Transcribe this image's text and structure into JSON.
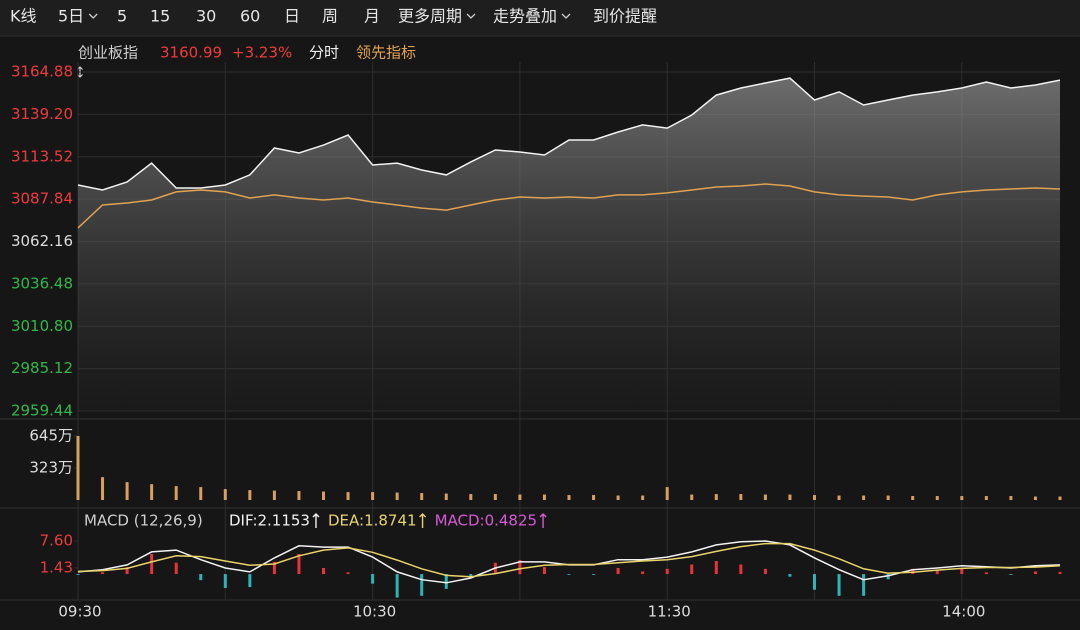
{
  "toolbar": {
    "items": [
      "K线",
      "5日",
      "5",
      "15",
      "30",
      "60",
      "日",
      "周",
      "月",
      "更多周期",
      "走势叠加",
      "到价提醒"
    ],
    "dropdowns": [
      1,
      9,
      10
    ]
  },
  "chart_data": [
    {
      "type": "line",
      "title": "创业板指",
      "last_price": 3160.99,
      "change": {
        "value": 3.23,
        "label": "+3.23%"
      },
      "mode": "分时",
      "indicator": "领先指标",
      "x": [
        0,
        5,
        10,
        15,
        20,
        25,
        30,
        35,
        40,
        45,
        50,
        55,
        60,
        65,
        70,
        75,
        80,
        85,
        90,
        95,
        100,
        105,
        110,
        115,
        120,
        125,
        130,
        135,
        140,
        145,
        150,
        155,
        160,
        165,
        170,
        175,
        180,
        185,
        190,
        195,
        200
      ],
      "xlim": [
        0,
        200
      ],
      "xticks": [
        {
          "value": 0,
          "label": "09:30"
        },
        {
          "value": 30,
          "label": null
        },
        {
          "value": 60,
          "label": "10:30"
        },
        {
          "value": 90,
          "label": null
        },
        {
          "value": 120,
          "label": "11:30"
        },
        {
          "value": 150,
          "label": null
        },
        {
          "value": 180,
          "label": "14:00"
        }
      ],
      "ylim": [
        2959.44,
        3164.88
      ],
      "yticks": [
        3164.88,
        {
          "value": 3139.2,
          "label": "3139.20"
        },
        3113.52,
        3087.84,
        3062.16,
        3036.48,
        {
          "value": 3010.8,
          "label": "3010.80"
        },
        2985.12,
        2959.44
      ],
      "ytick_colors": [
        "#ee3b3b",
        "#ee3b3b",
        "#ee3b3b",
        "#ee3b3b",
        "#dddddd",
        "#2fb84a",
        "#2fb84a",
        "#2fb84a",
        "#2fb84a"
      ],
      "grid": true,
      "area": true,
      "series": [
        {
          "color": "#f2f2f2",
          "values": [
            3096.4,
            3093.4,
            3098.2,
            3109.7,
            3094.6,
            3094.6,
            3096.4,
            3102.5,
            3118.8,
            3115.8,
            3120.6,
            3126.7,
            3108.5,
            3109.7,
            3105.5,
            3102.5,
            3110.4,
            3117.6,
            3116.4,
            3114.6,
            3123.7,
            3123.7,
            3128.5,
            3132.8,
            3130.9,
            3138.8,
            3150.9,
            3155.2,
            3158.2,
            3161.2,
            3147.9,
            3152.8,
            3144.9,
            3147.9,
            3150.9,
            3152.8,
            3155.2,
            3158.8,
            3155.2,
            3157.0,
            3160.0
          ]
        },
        {
          "color": "#e0a251",
          "values": [
            3070.4,
            3084.3,
            3085.5,
            3087.3,
            3092.2,
            3093.4,
            3092.2,
            3088.5,
            3090.4,
            3088.5,
            3087.3,
            3088.5,
            3086.1,
            3084.3,
            3082.4,
            3081.2,
            3084.3,
            3087.3,
            3089.1,
            3088.5,
            3089.1,
            3088.5,
            3090.4,
            3090.4,
            3091.6,
            3093.4,
            3095.2,
            3095.8,
            3097.0,
            3095.8,
            3092.2,
            3090.4,
            3089.7,
            3089.1,
            3087.3,
            3090.4,
            3092.2,
            3093.4,
            3094.0,
            3094.6,
            3094.0
          ]
        }
      ]
    },
    {
      "type": "bar",
      "color": "#d9a05b",
      "x": [
        0,
        5,
        10,
        15,
        20,
        25,
        30,
        35,
        40,
        45,
        50,
        55,
        60,
        65,
        70,
        75,
        80,
        85,
        90,
        95,
        100,
        105,
        110,
        115,
        120,
        125,
        130,
        135,
        140,
        145,
        150,
        155,
        160,
        165,
        170,
        175,
        180,
        185,
        190,
        195,
        200
      ],
      "xlim": [
        0,
        200
      ],
      "ylim": [
        0,
        645
      ],
      "yticks": [
        {
          "value": 645,
          "label": "645万"
        },
        {
          "value": 323,
          "label": "323万"
        }
      ],
      "values": [
        645,
        230,
        180,
        160,
        140,
        130,
        110,
        100,
        95,
        90,
        85,
        80,
        80,
        75,
        70,
        65,
        60,
        60,
        55,
        55,
        50,
        50,
        45,
        45,
        130,
        55,
        60,
        60,
        55,
        55,
        50,
        45,
        45,
        45,
        40,
        40,
        40,
        40,
        40,
        35,
        35
      ]
    },
    {
      "type": "line",
      "title": "MACD (12,26,9)",
      "x": [
        0,
        5,
        10,
        15,
        20,
        25,
        30,
        35,
        40,
        45,
        50,
        55,
        60,
        65,
        70,
        75,
        80,
        85,
        90,
        95,
        100,
        105,
        110,
        115,
        120,
        125,
        130,
        135,
        140,
        145,
        150,
        155,
        160,
        165,
        170,
        175,
        180,
        185,
        190,
        195,
        200
      ],
      "xlim": [
        0,
        200
      ],
      "ylim": [
        -5.5,
        9.66
      ],
      "yticks": [
        {
          "value": 7.6,
          "label": "7.60"
        },
        1.43
      ],
      "ytick_colors": [
        "#ee3b3b",
        "#ee3b3b"
      ],
      "series": [
        {
          "type": "bar",
          "label": "MACD:0.4825",
          "color": "#d65ad6",
          "colors": [
            "#e8333b",
            "#2bb5b8"
          ],
          "values": [
            -0.2,
            0.4,
            1.6,
            4.6,
            2.6,
            -1.4,
            -3.2,
            -3.0,
            2.8,
            4.6,
            1.4,
            0.4,
            -2.2,
            -5.4,
            -5.0,
            -3.4,
            -0.6,
            2.6,
            3.2,
            1.6,
            -0.2,
            -0.2,
            1.4,
            0.6,
            1.2,
            2.2,
            3.0,
            2.2,
            1.2,
            -0.6,
            -3.6,
            -5.0,
            -5.0,
            -1.2,
            1.2,
            1.0,
            1.2,
            0.4,
            -0.2,
            0.6,
            0.5
          ]
        },
        {
          "label": "DIF:2.1153",
          "color": "#f2f2f2",
          "values": [
            0.5,
            1.0,
            2.1,
            5.1,
            5.5,
            3.3,
            1.4,
            0.5,
            3.7,
            6.5,
            6.2,
            6.2,
            3.9,
            0.5,
            -1.3,
            -2.0,
            -0.9,
            1.4,
            2.8,
            2.8,
            2.1,
            2.1,
            3.3,
            3.3,
            3.9,
            5.1,
            6.7,
            7.4,
            7.6,
            6.7,
            3.7,
            1.0,
            -1.3,
            -0.4,
            1.0,
            1.4,
            1.9,
            1.7,
            1.4,
            1.9,
            2.1
          ]
        },
        {
          "label": "DEA:1.8741",
          "color": "#e8d36a",
          "values": [
            0.6,
            0.8,
            1.3,
            2.8,
            4.2,
            4.0,
            3.0,
            2.0,
            2.3,
            4.2,
            5.5,
            6.0,
            5.0,
            3.2,
            1.2,
            -0.3,
            -0.6,
            0.1,
            1.2,
            2.0,
            2.2,
            2.2,
            2.6,
            3.0,
            3.3,
            4.0,
            5.2,
            6.3,
            7.0,
            7.0,
            5.5,
            3.5,
            1.2,
            0.2,
            0.4,
            0.9,
            1.3,
            1.5,
            1.5,
            1.6,
            1.9
          ]
        }
      ]
    }
  ]
}
